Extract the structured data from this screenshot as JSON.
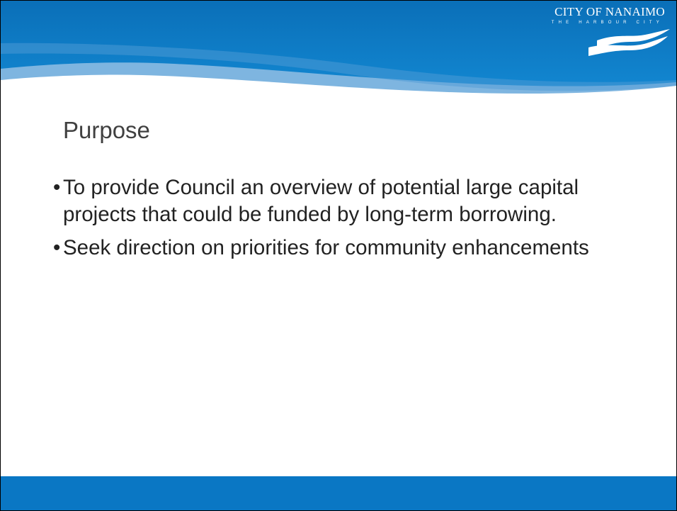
{
  "logo": {
    "name": "CITY OF NANAIMO",
    "tagline": "THE HARBOUR CITY"
  },
  "slide": {
    "title": "Purpose",
    "bullets": [
      "To provide Council an overview of potential large capital projects that could be funded by long-term borrowing.",
      "Seek direction on priorities for community enhancements"
    ]
  }
}
